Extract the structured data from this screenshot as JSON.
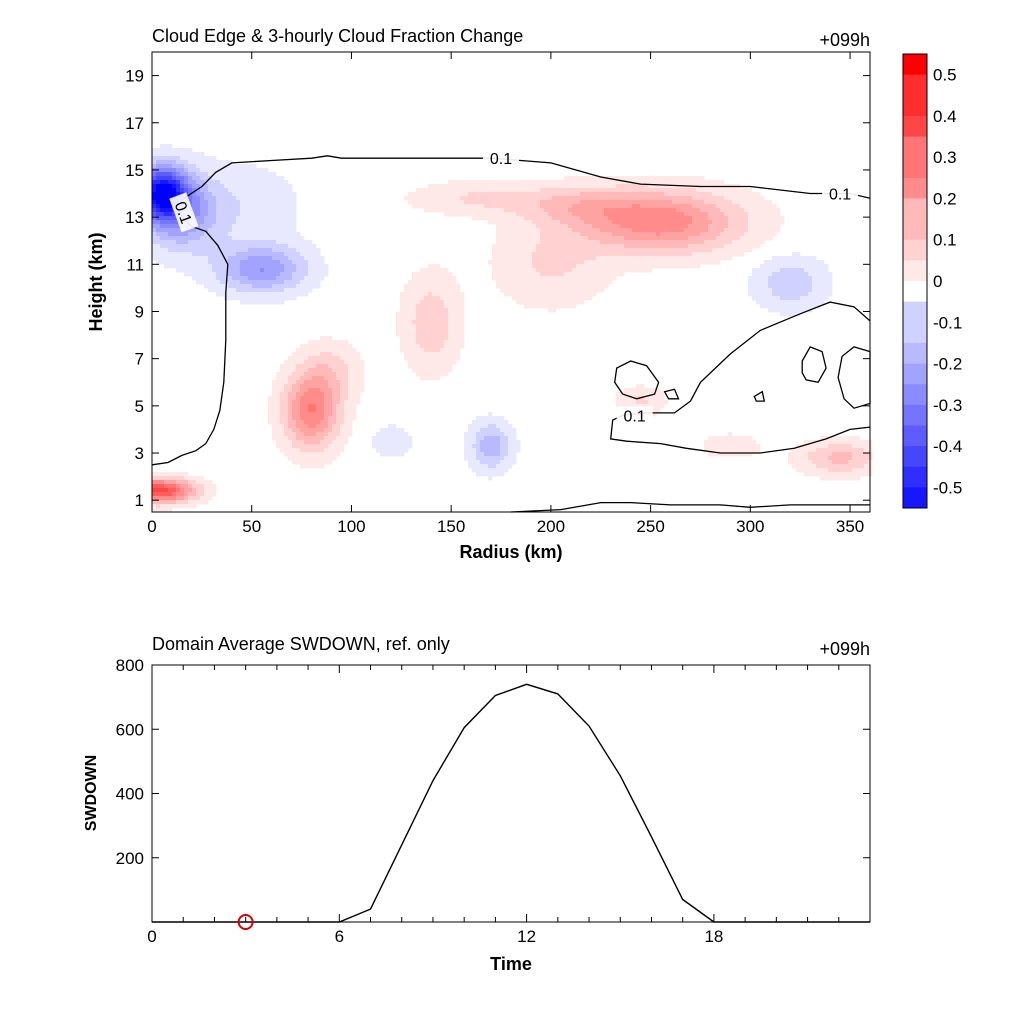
{
  "chart_data": [
    {
      "type": "heatmap",
      "title": "Cloud Edge & 3-hourly Cloud Fraction Change",
      "time_label": "+099h",
      "xlabel": "Radius (km)",
      "ylabel": "Height (km)",
      "xlim": [
        0,
        360
      ],
      "ylim": [
        0.5,
        20
      ],
      "xticks": [
        0,
        50,
        100,
        150,
        200,
        250,
        300,
        350
      ],
      "yticks": [
        1,
        3,
        5,
        7,
        9,
        11,
        13,
        15,
        17,
        19
      ],
      "contour_level": 0.1,
      "contour_label": "0.1",
      "colorbar": {
        "labels": [
          "0.5",
          "0.4",
          "0.3",
          "0.2",
          "0.1",
          "0",
          "-0.1",
          "-0.2",
          "-0.3",
          "-0.4",
          "-0.5"
        ],
        "levels": [
          0.55,
          0.5,
          0.45,
          0.4,
          0.35,
          0.3,
          0.25,
          0.2,
          0.15,
          0.1,
          0.05,
          0,
          -0.05,
          -0.1,
          -0.15,
          -0.2,
          -0.25,
          -0.3,
          -0.35,
          -0.4,
          -0.45,
          -0.5,
          -0.55
        ],
        "max_color": "#ff0000",
        "min_color": "#0000ff",
        "mid_color": "#ffffff"
      },
      "features": [
        {
          "x": 5,
          "y": 14,
          "sx": 12,
          "sy": 1.1,
          "a": -0.5
        },
        {
          "x": 15,
          "y": 13.2,
          "sx": 18,
          "sy": 1.6,
          "a": -0.2
        },
        {
          "x": 55,
          "y": 10.8,
          "sx": 22,
          "sy": 1.0,
          "a": -0.22
        },
        {
          "x": 45,
          "y": 13.5,
          "sx": 30,
          "sy": 1.8,
          "a": -0.06
        },
        {
          "x": 170,
          "y": 3.3,
          "sx": 10,
          "sy": 1.0,
          "a": -0.16
        },
        {
          "x": 120,
          "y": 3.5,
          "sx": 12,
          "sy": 0.8,
          "a": -0.05
        },
        {
          "x": 320,
          "y": 10.2,
          "sx": 18,
          "sy": 1.1,
          "a": -0.11
        },
        {
          "x": 3,
          "y": 1.4,
          "sx": 18,
          "sy": 0.5,
          "a": 0.4
        },
        {
          "x": 80,
          "y": 4.8,
          "sx": 14,
          "sy": 1.6,
          "a": 0.27
        },
        {
          "x": 90,
          "y": 6.5,
          "sx": 15,
          "sy": 1.2,
          "a": 0.08
        },
        {
          "x": 255,
          "y": 12.8,
          "sx": 40,
          "sy": 1.3,
          "a": 0.26
        },
        {
          "x": 215,
          "y": 13.5,
          "sx": 30,
          "sy": 0.8,
          "a": 0.1
        },
        {
          "x": 165,
          "y": 13.8,
          "sx": 35,
          "sy": 0.7,
          "a": 0.08
        },
        {
          "x": 140,
          "y": 8.5,
          "sx": 14,
          "sy": 2.0,
          "a": 0.11
        },
        {
          "x": 200,
          "y": 11.0,
          "sx": 28,
          "sy": 1.8,
          "a": 0.08
        },
        {
          "x": 345,
          "y": 2.8,
          "sx": 20,
          "sy": 0.7,
          "a": 0.14
        },
        {
          "x": 245,
          "y": 5.2,
          "sx": 12,
          "sy": 0.6,
          "a": 0.08
        },
        {
          "x": 290,
          "y": 3.3,
          "sx": 14,
          "sy": 0.5,
          "a": 0.07
        }
      ],
      "contours": [
        {
          "closed": false,
          "points": [
            [
              0,
              2.5
            ],
            [
              8,
              2.6
            ],
            [
              15,
              2.9
            ],
            [
              22,
              3.1
            ],
            [
              27,
              3.4
            ],
            [
              31,
              4.0
            ],
            [
              34,
              4.8
            ],
            [
              36,
              6.0
            ],
            [
              37,
              7.8
            ],
            [
              37,
              9.8
            ],
            [
              38,
              11.0
            ],
            [
              33,
              11.8
            ],
            [
              27,
              12.4
            ],
            [
              20,
              12.6
            ],
            [
              16,
              12.9
            ],
            [
              13,
              13.4
            ],
            [
              16,
              13.8
            ],
            [
              25,
              14.3
            ],
            [
              32,
              14.9
            ],
            [
              40,
              15.3
            ],
            [
              60,
              15.4
            ],
            [
              80,
              15.5
            ],
            [
              88,
              15.6
            ],
            [
              95,
              15.5
            ],
            [
              120,
              15.5
            ],
            [
              170,
              15.5
            ],
            [
              200,
              15.3
            ],
            [
              225,
              14.7
            ],
            [
              245,
              14.4
            ],
            [
              275,
              14.3
            ],
            [
              300,
              14.3
            ],
            [
              330,
              14.0
            ],
            [
              350,
              14.0
            ],
            [
              360,
              13.8
            ]
          ]
        },
        {
          "closed": false,
          "points": [
            [
              360,
              8.6
            ],
            [
              352,
              9.2
            ],
            [
              340,
              9.4
            ],
            [
              325,
              8.9
            ],
            [
              305,
              8.2
            ],
            [
              290,
              7.2
            ],
            [
              275,
              6.0
            ],
            [
              270,
              5.2
            ],
            [
              262,
              4.7
            ],
            [
              248,
              4.7
            ],
            [
              236,
              4.6
            ],
            [
              231,
              4.4
            ],
            [
              230,
              3.6
            ],
            [
              238,
              3.5
            ],
            [
              255,
              3.4
            ],
            [
              268,
              3.2
            ],
            [
              285,
              3.0
            ],
            [
              305,
              3.0
            ],
            [
              322,
              3.2
            ],
            [
              338,
              3.6
            ],
            [
              350,
              4.0
            ],
            [
              360,
              4.1
            ]
          ]
        },
        {
          "closed": true,
          "points": [
            [
              360,
              5.1
            ],
            [
              352,
              4.9
            ],
            [
              347,
              5.3
            ],
            [
              344,
              6.2
            ],
            [
              346,
              7.1
            ],
            [
              352,
              7.5
            ],
            [
              360,
              7.3
            ]
          ]
        },
        {
          "closed": true,
          "points": [
            [
              233,
              6.6
            ],
            [
              240,
              6.9
            ],
            [
              248,
              6.7
            ],
            [
              254,
              6.0
            ],
            [
              252,
              5.5
            ],
            [
              243,
              5.3
            ],
            [
              236,
              5.5
            ],
            [
              232,
              6.0
            ]
          ]
        },
        {
          "closed": true,
          "points": [
            [
              326,
              6.9
            ],
            [
              330,
              7.5
            ],
            [
              336,
              7.3
            ],
            [
              338,
              6.6
            ],
            [
              334,
              6.0
            ],
            [
              328,
              6.1
            ],
            [
              326,
              6.4
            ]
          ]
        },
        {
          "closed": true,
          "points": [
            [
              257,
              5.6
            ],
            [
              262,
              5.7
            ],
            [
              264,
              5.3
            ],
            [
              259,
              5.3
            ]
          ]
        },
        {
          "closed": true,
          "points": [
            [
              302,
              5.4
            ],
            [
              306,
              5.6
            ],
            [
              307,
              5.2
            ],
            [
              303,
              5.2
            ]
          ]
        },
        {
          "closed": false,
          "points": [
            [
              180,
              0.5
            ],
            [
              205,
              0.6
            ],
            [
              225,
              0.9
            ],
            [
              240,
              0.9
            ],
            [
              260,
              0.8
            ],
            [
              285,
              0.8
            ],
            [
              300,
              0.7
            ],
            [
              320,
              0.8
            ],
            [
              360,
              0.8
            ]
          ]
        }
      ],
      "contour_labels": [
        {
          "x": 175,
          "y": 15.5,
          "rot": 0
        },
        {
          "x": 345,
          "y": 14.0,
          "rot": 0
        },
        {
          "x": 16,
          "y": 13.2,
          "rot": 70
        },
        {
          "x": 242,
          "y": 4.6,
          "rot": 0
        }
      ]
    },
    {
      "type": "line",
      "title": "Domain Average SWDOWN, ref. only",
      "time_label": "+099h",
      "xlabel": "Time",
      "ylabel": "SWDOWN",
      "xlim": [
        0,
        23
      ],
      "ylim": [
        0,
        800
      ],
      "xticks": [
        0,
        6,
        12,
        18
      ],
      "yticks": [
        200,
        400,
        600,
        800
      ],
      "x": [
        0,
        1,
        2,
        3,
        4,
        5,
        6,
        7,
        8,
        9,
        10,
        11,
        12,
        13,
        14,
        15,
        16,
        17,
        18,
        19,
        20,
        21,
        22,
        23
      ],
      "values": [
        0,
        0,
        0,
        0,
        0,
        0,
        0,
        40,
        240,
        440,
        605,
        705,
        740,
        710,
        610,
        455,
        265,
        70,
        0,
        0,
        0,
        0,
        0,
        0
      ],
      "marker": {
        "x": 3,
        "y": 0,
        "color": "#dd0000"
      },
      "line_color": "#000000"
    }
  ]
}
